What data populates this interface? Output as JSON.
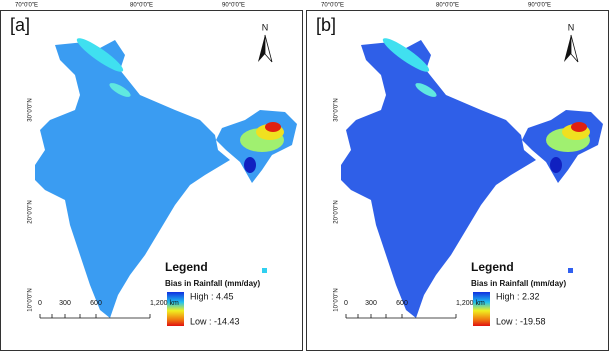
{
  "panels": [
    {
      "label": "[a]",
      "lon_labels": [
        "70°0'0\"E",
        "80°0'0\"E",
        "90°0'0\"E"
      ],
      "lat_labels": [
        "30°0'0\"N",
        "20°0'0\"N",
        "10°0'0\"N"
      ],
      "north": "N",
      "legend": {
        "title": "Legend",
        "subtitle": "Bias in Rainfall (mm/day)",
        "high": "High : 4.45",
        "low": "Low : -14.43"
      },
      "scale": [
        "0",
        "300",
        "600",
        "1,200 km"
      ]
    },
    {
      "label": "[b]",
      "lon_labels": [
        "70°0'0\"E",
        "80°0'0\"E",
        "90°0'0\"E"
      ],
      "lat_labels": [
        "30°0'0\"N",
        "20°0'0\"N",
        "10°0'0\"N"
      ],
      "north": "N",
      "legend": {
        "title": "Legend",
        "subtitle": "Bias in Rainfall (mm/day)",
        "high": "High : 2.32",
        "low": "Low : -19.58"
      },
      "scale": [
        "0",
        "300",
        "600",
        "1,200 km"
      ]
    }
  ]
}
